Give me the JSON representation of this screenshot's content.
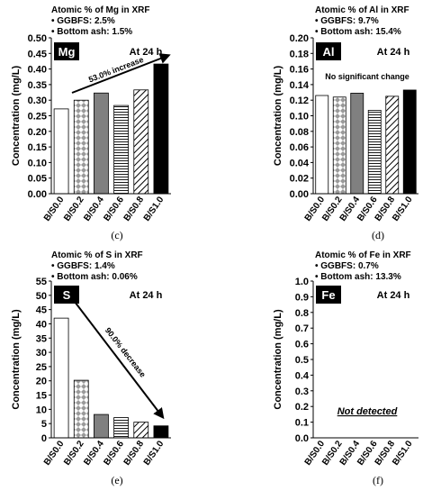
{
  "chart_data": [
    {
      "type": "bar",
      "title": "Atomic % of Mg in XRF",
      "notes": [
        "• GGBFS: 2.5%",
        "• Bottom ash: 1.5%"
      ],
      "element": "Mg",
      "time_label": "At 24 h",
      "annotation": "53.0% increase",
      "ylabel": "Concentration (mg/L)",
      "caption": "(c)",
      "categories": [
        "B/S0.0",
        "B/S0.2",
        "B/S0.4",
        "B/S0.6",
        "B/S0.8",
        "B/S1.0"
      ],
      "values": [
        0.272,
        0.3,
        0.323,
        0.283,
        0.333,
        0.416
      ],
      "fills": [
        "#ffffff",
        "checker",
        "#808080",
        "hlines",
        "diagonal",
        "#000000"
      ],
      "ylim": [
        0,
        0.5
      ],
      "yticks": [
        {
          "value": 0,
          "label": "0.00"
        },
        0.05,
        {
          "value": 0.1,
          "label": "0.10"
        },
        0.15,
        {
          "value": 0.2,
          "label": "0.20"
        },
        0.25,
        {
          "value": 0.3,
          "label": "0.30"
        },
        0.35,
        {
          "value": 0.4,
          "label": "0.40"
        },
        0.45,
        {
          "value": 0.5,
          "label": "0.50"
        }
      ]
    },
    {
      "type": "bar",
      "title": "Atomic % of Al in XRF",
      "notes": [
        "• GGBFS: 9.7%",
        "• Bottom ash: 15.4%"
      ],
      "element": "Al",
      "time_label": "At 24 h",
      "annotation": "No significant change",
      "ylabel": "Concentration (mg/L)",
      "caption": "(d)",
      "categories": [
        "B/S0.0",
        "B/S0.2",
        "B/S0.4",
        "B/S0.6",
        "B/S0.8",
        "B/S1.0"
      ],
      "values": [
        0.126,
        0.124,
        0.129,
        0.107,
        0.125,
        0.133
      ],
      "fills": [
        "#ffffff",
        "checker",
        "#808080",
        "hlines",
        "diagonal",
        "#000000"
      ],
      "ylim": [
        0,
        0.2
      ],
      "yticks": [
        {
          "value": 0,
          "label": "0.00"
        },
        0.02,
        0.04,
        0.06,
        0.08,
        {
          "value": 0.1,
          "label": "0.10"
        },
        0.12,
        0.14,
        0.16,
        0.18,
        {
          "value": 0.2,
          "label": "0.20"
        }
      ]
    },
    {
      "type": "bar",
      "title": "Atomic % of S in XRF",
      "notes": [
        "• GGBFS: 1.4%",
        "• Bottom ash: 0.06%"
      ],
      "element": "S",
      "time_label": "At 24 h",
      "annotation": "90.0% decrease",
      "ylabel": "Concentration (mg/L)",
      "caption": "(e)",
      "categories": [
        "B/S0.0",
        "B/S0.2",
        "B/S0.4",
        "B/S0.6",
        "B/S0.8",
        "B/S1.0"
      ],
      "values": [
        42,
        20.2,
        8.2,
        7.1,
        5.5,
        4.2
      ],
      "fills": [
        "#ffffff",
        "checker",
        "#808080",
        "hlines",
        "diagonal",
        "#000000"
      ],
      "ylim": [
        0,
        55
      ],
      "yticks": [
        0,
        5,
        10,
        15,
        20,
        25,
        30,
        35,
        40,
        45,
        50,
        55
      ]
    },
    {
      "type": "bar",
      "title": "Atomic % of Fe in XRF",
      "notes": [
        "• GGBFS: 0.7%",
        "• Bottom ash: 13.3%"
      ],
      "element": "Fe",
      "time_label": "At 24 h",
      "annotation": "Not detected",
      "ylabel": "Concentration (mg/L)",
      "caption": "(f)",
      "categories": [
        "B/S0.0",
        "B/S0.2",
        "B/S0.4",
        "B/S0.6",
        "B/S0.8",
        "B/S1.0"
      ],
      "values": [
        null,
        null,
        null,
        null,
        null,
        null
      ],
      "fills": [
        "#ffffff",
        "checker",
        "#808080",
        "hlines",
        "diagonal",
        "#000000"
      ],
      "ylim": [
        0,
        1
      ],
      "yticks": [
        {
          "value": 0,
          "label": "0.0"
        },
        0.1,
        0.2,
        0.3,
        0.4,
        0.5,
        0.6,
        0.7,
        0.8,
        0.9,
        {
          "value": 1,
          "label": "1.0"
        }
      ]
    }
  ]
}
